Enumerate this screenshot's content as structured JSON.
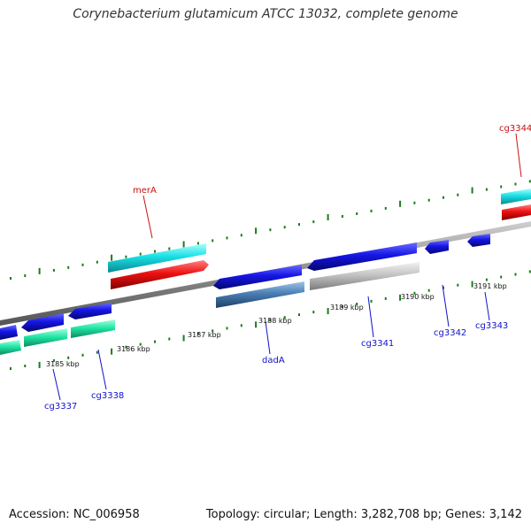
{
  "title": "Corynebacterium glutamicum ATCC 13032, complete genome",
  "footer": {
    "accession": "Accession: NC_006958",
    "summary": "Topology: circular; Length: 3,282,708 bp; Genes: 3,142"
  },
  "scale_labels": [
    "3185 kbp",
    "3186 kbp",
    "3187 kbp",
    "3188 kbp",
    "3189 kbp",
    "3190 kbp",
    "3191 kbp"
  ],
  "gene_labels": {
    "merA": "merA",
    "cg3344": "cg3344",
    "cg3337": "cg3337",
    "cg3338": "cg3338",
    "dadA": "dadA",
    "cg3341": "cg3341",
    "cg3342": "cg3342",
    "cg3343": "cg3343"
  },
  "colors": {
    "forward_cds": "#1515e6",
    "reverse_cds": "#1515e6",
    "cyan": "#19e0e6",
    "red": "#ee1111",
    "green_aqua": "#22e6a6",
    "steel": "#4a7fb4",
    "grey": "#c4c4c4",
    "tick": "#1d7a1d",
    "backbone": "#8a8a8a",
    "label_blue": "#1212c8",
    "label_red": "#c81212"
  }
}
